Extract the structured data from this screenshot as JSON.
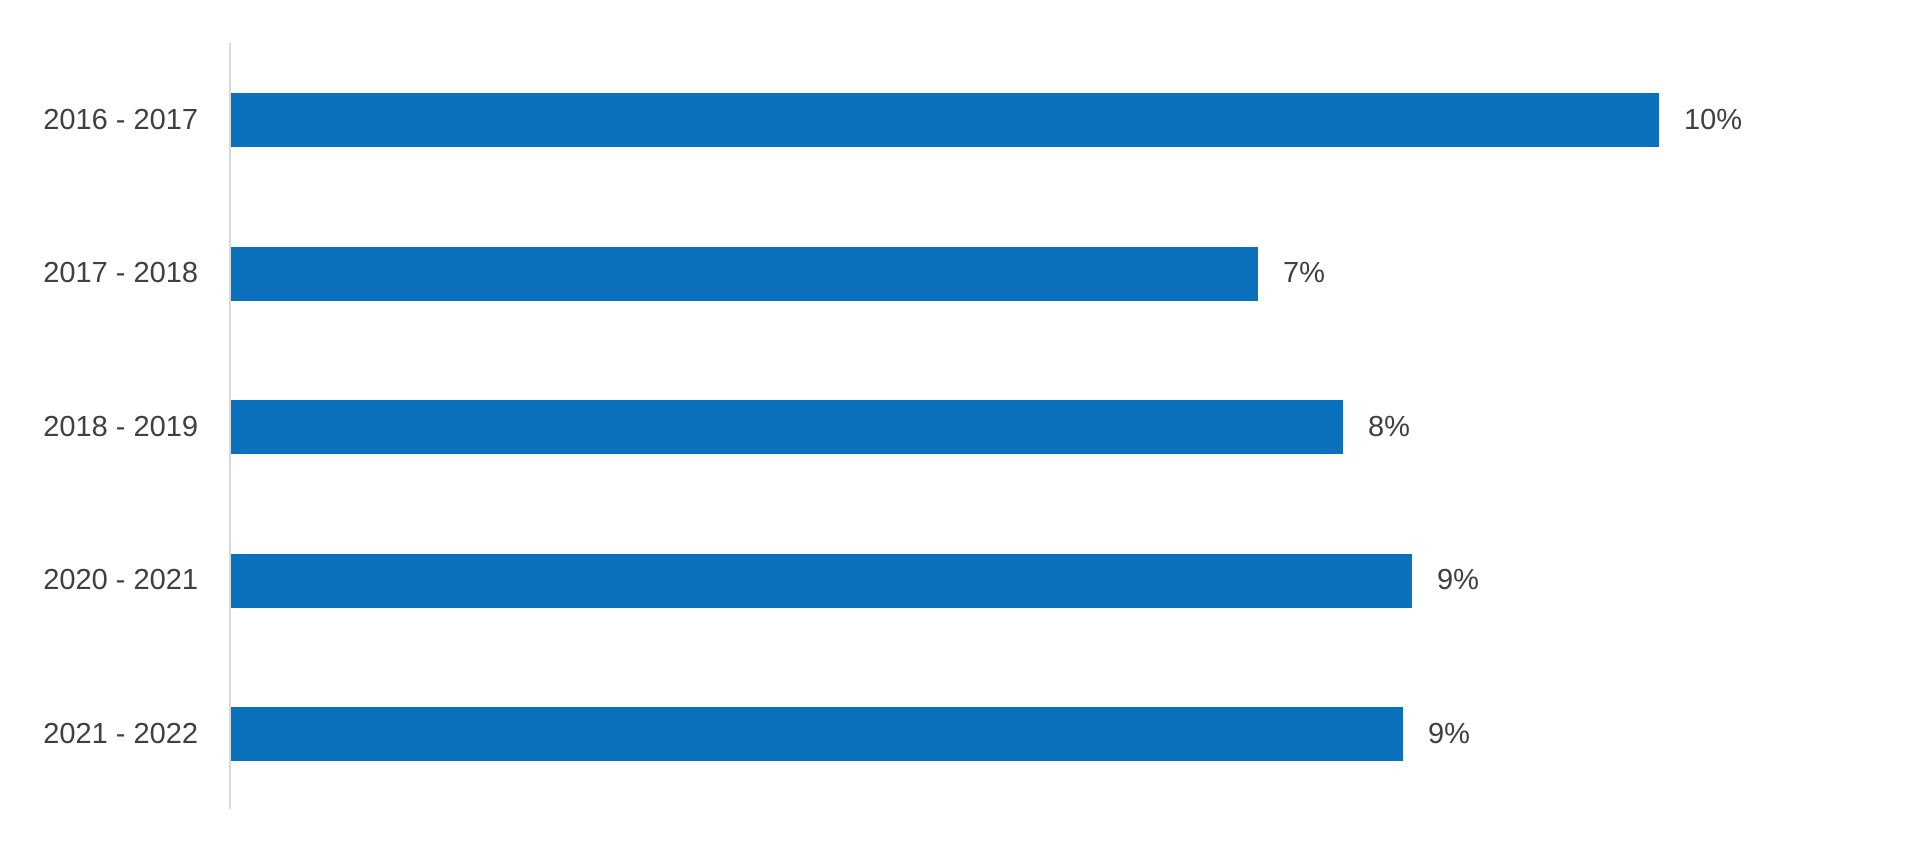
{
  "chart_data": {
    "type": "bar",
    "orientation": "horizontal",
    "title": "",
    "xlabel": "",
    "ylabel": "",
    "categories": [
      "2016 - 2017",
      "2017 - 2018",
      "2018 - 2019",
      "2020 - 2021",
      "2021 - 2022"
    ],
    "values": [
      10,
      7,
      8,
      9,
      9
    ],
    "data_labels": [
      "10%",
      "7%",
      "8%",
      "9%",
      "9%"
    ],
    "bar_length_fractions": [
      1.0,
      0.719,
      0.779,
      0.827,
      0.821
    ],
    "xlim": [
      0,
      11
    ],
    "grid": false,
    "legend": "none",
    "bar_color": "#0c71bd",
    "axis_line_color": "#d9d9d9",
    "label_color": "#404040",
    "background_color": "#ffffff"
  }
}
